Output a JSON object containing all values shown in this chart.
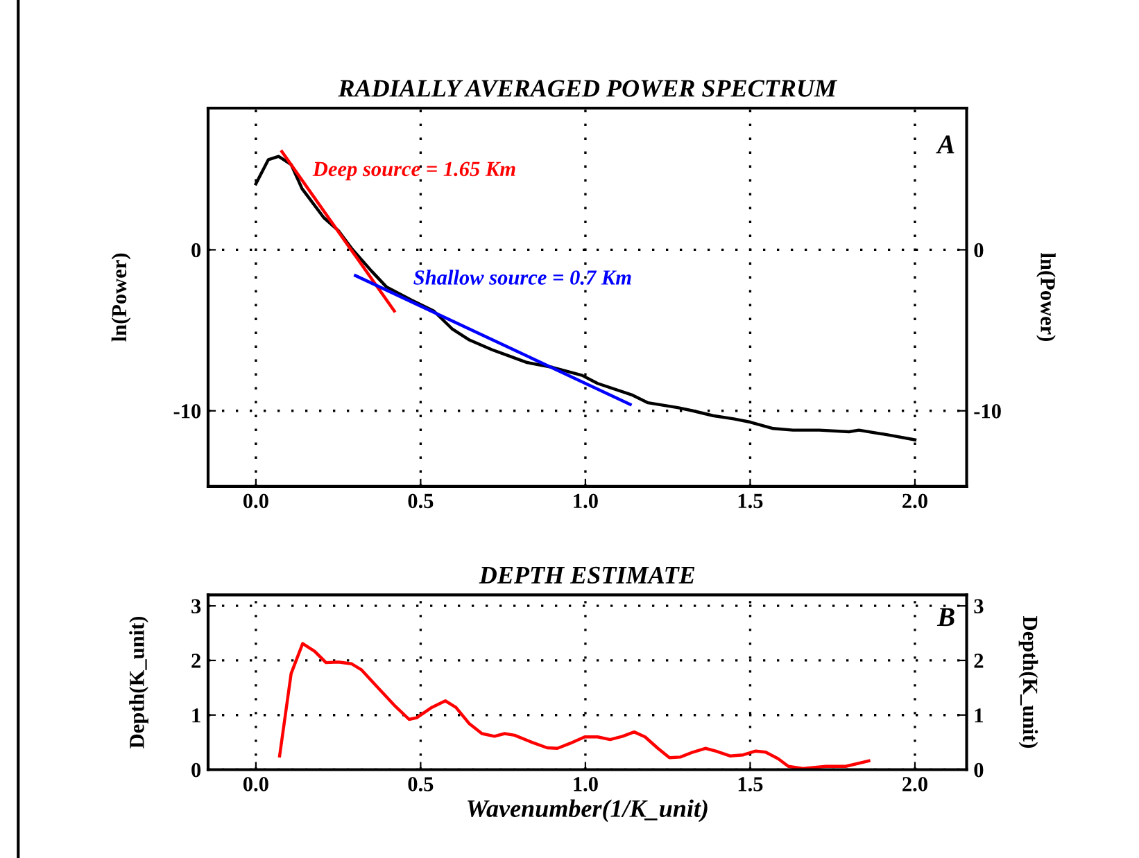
{
  "chart_data": [
    {
      "type": "line",
      "title": "RADIALLY AVERAGED POWER SPECTRUM",
      "ylabel": "ln(Power)",
      "y2label": "ln(Power)",
      "xlim": [
        -0.145,
        2.157
      ],
      "ylim": [
        -14.7,
        8.8
      ],
      "y2lim": [
        -14.7,
        8.8
      ],
      "xticks": [
        {
          "value": 0,
          "label": "0.0"
        },
        {
          "value": 0.5,
          "label": "0.5"
        },
        {
          "value": 1,
          "label": "1.0"
        },
        {
          "value": 1.5,
          "label": "1.5"
        },
        {
          "value": 2,
          "label": "2.0"
        }
      ],
      "yticks": [
        0,
        -10
      ],
      "y2ticks": [
        0,
        -10
      ],
      "grid": true,
      "line_style": "solid",
      "marker": "none",
      "annotations": [
        "A",
        "Deep source = 1.65 Km",
        "Shallow source = 0.7 Km"
      ],
      "series": [
        {
          "color": "#000000",
          "x": [
            0,
            0.038,
            0.069,
            0.107,
            0.14,
            0.206,
            0.25,
            0.29,
            0.35,
            0.396,
            0.47,
            0.54,
            0.595,
            0.648,
            0.716,
            0.823,
            0.9,
            0.99,
            1.037,
            1.14,
            1.19,
            1.28,
            1.326,
            1.387,
            1.45,
            1.5,
            1.57,
            1.63,
            1.71,
            1.8,
            1.83,
            1.92,
            2.0
          ],
          "values": [
            4.1,
            5.6,
            5.8,
            5.3,
            3.8,
            2.0,
            1.2,
            0.1,
            -1.3,
            -2.3,
            -3.1,
            -3.8,
            -4.9,
            -5.6,
            -6.2,
            -7.0,
            -7.3,
            -7.8,
            -8.3,
            -9.0,
            -9.5,
            -9.8,
            -10.0,
            -10.3,
            -10.5,
            -10.7,
            -11.1,
            -11.2,
            -11.2,
            -11.3,
            -11.2,
            -11.5,
            -11.8
          ]
        },
        {
          "color": "#ff0000",
          "x": [
            0.079,
            0.42
          ],
          "values": [
            6.1,
            -3.8
          ]
        },
        {
          "color": "#0000ff",
          "x": [
            0.302,
            1.136
          ],
          "values": [
            -1.6,
            -9.6
          ]
        }
      ]
    },
    {
      "type": "line",
      "title": "DEPTH ESTIMATE",
      "xlabel": "Wavenumber(1/K_unit)",
      "ylabel": "Depth(K_unit)",
      "y2label": "Depth(K_unit)",
      "xlim": [
        -0.145,
        2.157
      ],
      "ylim": [
        0,
        3.2
      ],
      "y2lim": [
        0,
        3.2
      ],
      "xticks": [
        {
          "value": 0,
          "label": "0.0"
        },
        {
          "value": 0.5,
          "label": "0.5"
        },
        {
          "value": 1,
          "label": "1.0"
        },
        {
          "value": 1.5,
          "label": "1.5"
        },
        {
          "value": 2,
          "label": "2.0"
        }
      ],
      "yticks": [
        0,
        1,
        2,
        3
      ],
      "y2ticks": [
        0,
        1,
        2,
        3
      ],
      "grid": true,
      "line_style": "solid",
      "marker": "none",
      "annotations": [
        "B"
      ],
      "series": [
        {
          "color": "#ff0000",
          "x": [
            0.072,
            0.107,
            0.142,
            0.178,
            0.213,
            0.25,
            0.29,
            0.32,
            0.366,
            0.42,
            0.465,
            0.488,
            0.534,
            0.575,
            0.607,
            0.648,
            0.686,
            0.724,
            0.755,
            0.785,
            0.838,
            0.884,
            0.915,
            0.953,
            0.998,
            1.037,
            1.075,
            1.113,
            1.148,
            1.181,
            1.22,
            1.255,
            1.288,
            1.326,
            1.364,
            1.395,
            1.44,
            1.479,
            1.517,
            1.547,
            1.585,
            1.616,
            1.66,
            1.692,
            1.73,
            1.79,
            1.86
          ],
          "values": [
            0.25,
            1.76,
            2.31,
            2.17,
            1.96,
            1.97,
            1.94,
            1.83,
            1.53,
            1.18,
            0.92,
            0.95,
            1.14,
            1.26,
            1.14,
            0.84,
            0.66,
            0.61,
            0.66,
            0.63,
            0.5,
            0.4,
            0.39,
            0.48,
            0.6,
            0.6,
            0.55,
            0.61,
            0.69,
            0.6,
            0.39,
            0.22,
            0.23,
            0.32,
            0.39,
            0.34,
            0.25,
            0.27,
            0.34,
            0.32,
            0.2,
            0.06,
            0.02,
            0.04,
            0.06,
            0.06,
            0.16
          ]
        }
      ]
    }
  ]
}
